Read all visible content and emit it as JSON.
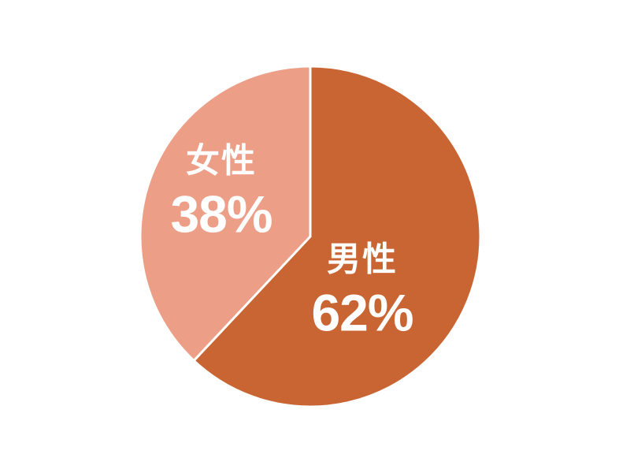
{
  "chart_data": {
    "type": "pie",
    "title": "",
    "start_angle_deg": 0,
    "direction": "clockwise",
    "background_color": "#ffffff",
    "separator_color": "#ffffff",
    "label_text_color": "#ffffff",
    "legend": "none",
    "slices": [
      {
        "label": "男性",
        "value": 62,
        "display": "62%",
        "color": "#c96532"
      },
      {
        "label": "女性",
        "value": 38,
        "display": "38%",
        "color": "#ec9e87"
      }
    ]
  }
}
